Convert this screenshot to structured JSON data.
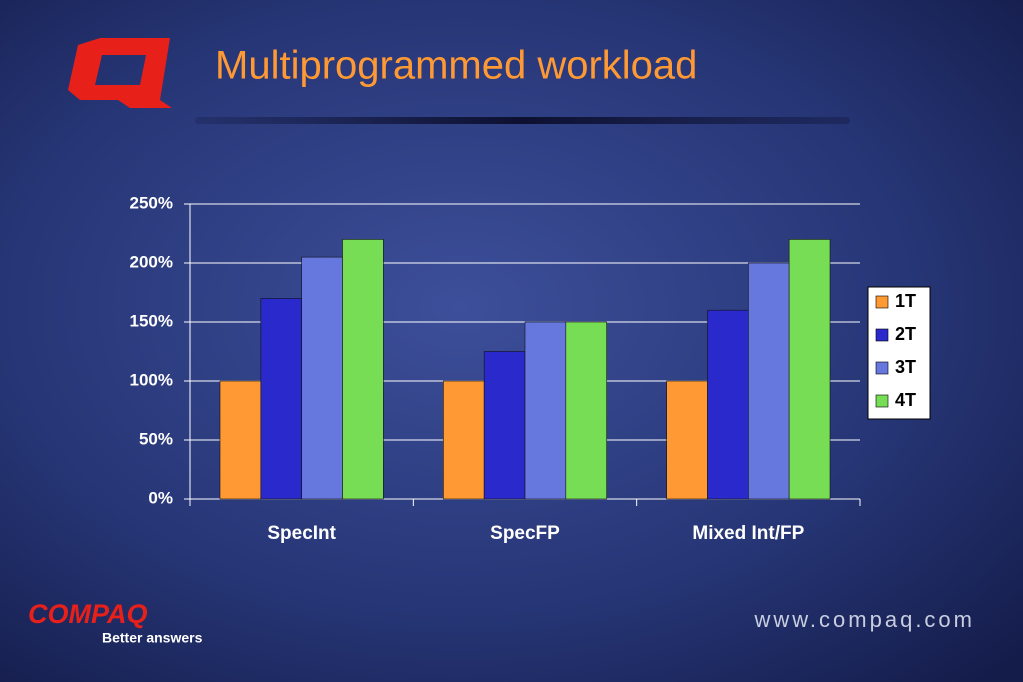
{
  "chart_data": {
    "type": "bar",
    "title": "Multiprogrammed workload",
    "categories": [
      "SpecInt",
      "SpecFP",
      "Mixed Int/FP"
    ],
    "series": [
      {
        "name": "1T",
        "color": "#ff9933",
        "values": [
          100,
          100,
          100
        ]
      },
      {
        "name": "2T",
        "color": "#2a2acc",
        "values": [
          170,
          125,
          160
        ]
      },
      {
        "name": "3T",
        "color": "#6677dd",
        "values": [
          205,
          150,
          200
        ]
      },
      {
        "name": "4T",
        "color": "#77dd55",
        "values": [
          220,
          150,
          220
        ]
      }
    ],
    "ylim": [
      0,
      250
    ],
    "yticks": [
      {
        "value": 0,
        "label": "0%"
      },
      {
        "value": 50,
        "label": "50%"
      },
      {
        "value": 100,
        "label": "100%"
      },
      {
        "value": 150,
        "label": "150%"
      },
      {
        "value": 200,
        "label": "200%"
      },
      {
        "value": 250,
        "label": "250%"
      }
    ],
    "grid": true,
    "legend": "right"
  },
  "slide": {
    "logo_text": "COMPAQ",
    "tagline": "Better answers",
    "url": "www.compaq.com"
  }
}
